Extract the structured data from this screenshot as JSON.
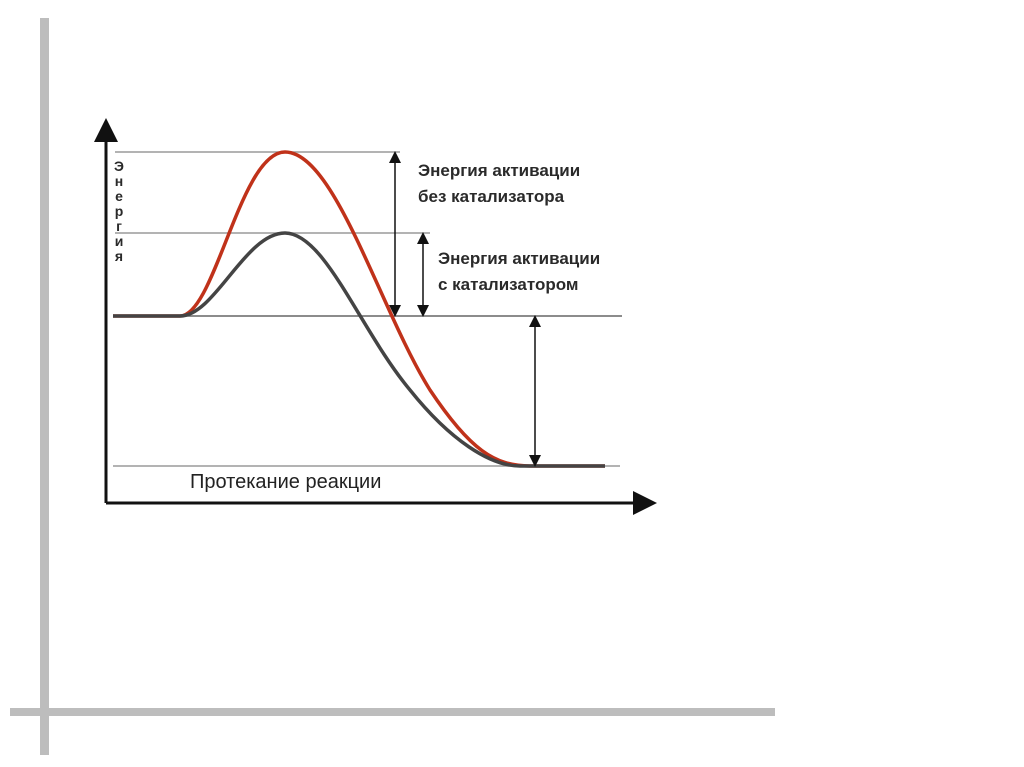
{
  "diagram": {
    "y_axis_label": "Энергия",
    "x_axis_label": "Протекание реакции",
    "annotations": [
      {
        "lines": [
          "Энергия активации",
          "без катализатора"
        ]
      },
      {
        "lines": [
          "Энергия активации",
          "с катализатором"
        ]
      }
    ]
  }
}
